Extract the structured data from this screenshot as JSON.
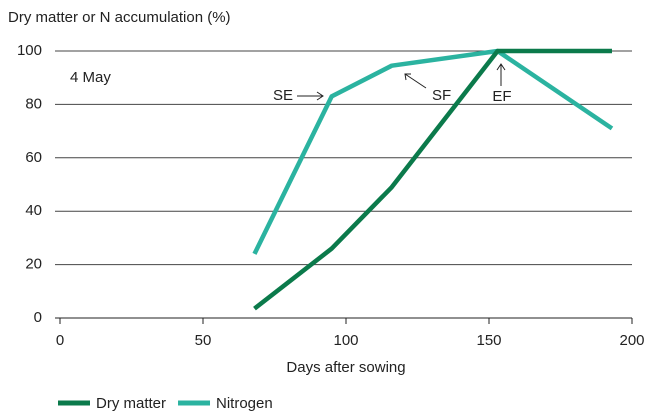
{
  "chart_data": {
    "type": "line",
    "y_label": "Dry matter or N accumulation (%)",
    "x_label": "Days after sowing",
    "annotations": [
      "4 May",
      "SE",
      "SF",
      "EF"
    ],
    "xlim": [
      0,
      200
    ],
    "xticks": [
      0,
      50,
      100,
      150,
      200
    ],
    "ylim": [
      0,
      100
    ],
    "yticks": [
      0,
      20,
      40,
      60,
      80,
      100
    ],
    "grid": true,
    "legend": "bottom",
    "series": [
      {
        "name": "Dry matter",
        "color": "#0b7a4b",
        "x": [
          68,
          95,
          116,
          153,
          193
        ],
        "values": [
          3.5,
          26,
          49,
          100,
          100
        ]
      },
      {
        "name": "Nitrogen",
        "color": "#2bb3a0",
        "x": [
          68,
          95,
          116,
          153,
          193
        ],
        "values": [
          24,
          83,
          94.5,
          100,
          71
        ]
      }
    ]
  }
}
